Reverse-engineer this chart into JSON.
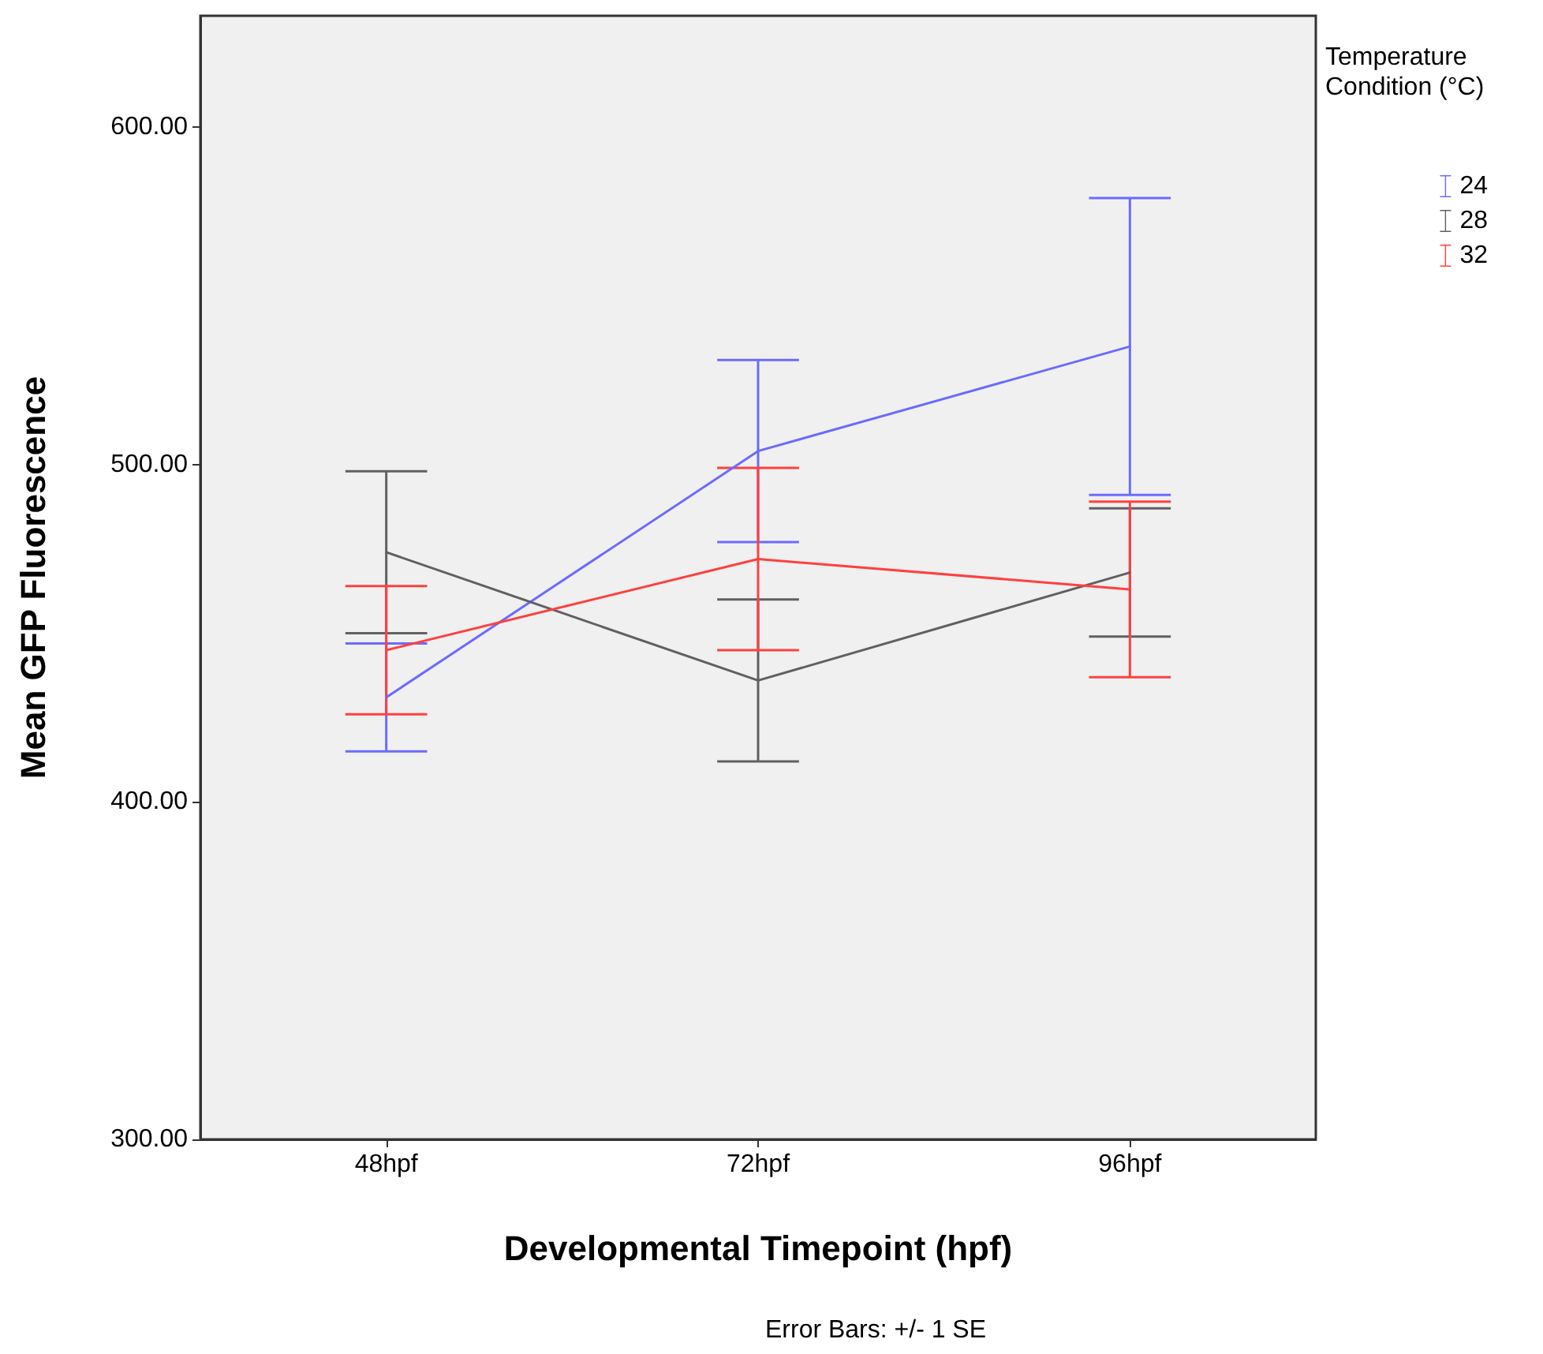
{
  "chart_data": {
    "type": "line",
    "xlabel": "Developmental Timepoint (hpf)",
    "ylabel": "Mean GFP Fluorescence",
    "legend_title": "Temperature Condition (°C)",
    "annotations": [
      "Error Bars: +/- 1 SE"
    ],
    "categories": [
      "48hpf",
      "72hpf",
      "96hpf"
    ],
    "series": [
      {
        "name": "24",
        "color": "#6b6bff",
        "values": [
          431,
          504,
          535
        ],
        "errors": [
          16,
          27,
          44
        ]
      },
      {
        "name": "28",
        "color": "#606060",
        "values": [
          474,
          436,
          468
        ],
        "errors": [
          24,
          24,
          19
        ]
      },
      {
        "name": "32",
        "color": "#ff4040",
        "values": [
          445,
          472,
          463
        ],
        "errors": [
          19,
          27,
          26
        ]
      }
    ],
    "ylim": [
      300,
      633
    ],
    "yticks": [
      {
        "value": 300,
        "label": "300.00"
      },
      {
        "value": 400,
        "label": "400.00"
      },
      {
        "value": 500,
        "label": "500.00"
      },
      {
        "value": 600,
        "label": "600.00"
      }
    ],
    "grid": false,
    "legend": "top right",
    "marker": "none",
    "line_style": "solid"
  }
}
